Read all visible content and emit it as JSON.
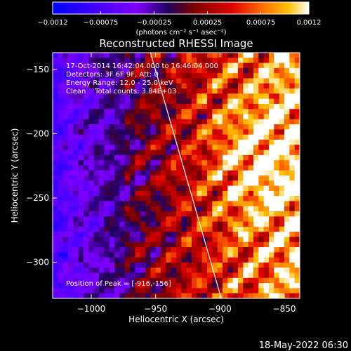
{
  "chart_data": {
    "type": "heatmap",
    "title": "Reconstructed RHESSI Image",
    "xlabel": "Heliocentric X (arcsec)",
    "ylabel": "Heliocentric Y (arcsec)",
    "xlim": [
      -1030,
      -838
    ],
    "ylim": [
      -328,
      -137
    ],
    "x_ticks": [
      {
        "value": -1000,
        "label": "−1000"
      },
      {
        "value": -950,
        "label": "−950"
      },
      {
        "value": -900,
        "label": "−900"
      },
      {
        "value": -850,
        "label": "−850"
      }
    ],
    "y_ticks": [
      {
        "value": -150,
        "label": "−150"
      },
      {
        "value": -200,
        "label": "−200"
      },
      {
        "value": -250,
        "label": "−250"
      },
      {
        "value": -300,
        "label": "−300"
      }
    ],
    "colorbar": {
      "range": [
        -0.0012,
        0.0012
      ],
      "ticks": [
        {
          "value": -0.0012,
          "label": "−0.0012"
        },
        {
          "value": -0.00075,
          "label": "−0.00075"
        },
        {
          "value": -0.00025,
          "label": "−0.00025"
        },
        {
          "value": 0.00025,
          "label": "0.00025"
        },
        {
          "value": 0.00075,
          "label": "0.00075"
        },
        {
          "value": 0.0012,
          "label": "0.0012"
        }
      ],
      "unit_label": "(photons cm⁻² s⁻¹ asec⁻²)",
      "colormap": [
        "#0000ff",
        "#8000ff",
        "#200060",
        "#7a0000",
        "#e00000",
        "#ff7000",
        "#ffc000",
        "#ffffff"
      ]
    },
    "annotations": [
      "17-Oct-2014 16:42:04.000 to 16:46:04.000",
      "Detectors: 3F 6F 9F, Att: 0",
      "Energy Range: 12.0 - 25.0 keV",
      "Clean    Total counts: 3.84E+03"
    ],
    "peak_label": "Position of Peak = [-916,-156]",
    "peak": {
      "x": -916,
      "y": -156
    },
    "limb_line": [
      {
        "x": -954,
        "y": -137
      },
      {
        "x": -899,
        "y": -328
      }
    ],
    "grid": false
  },
  "footer": {
    "timestamp": "18-May-2022 06:30"
  }
}
